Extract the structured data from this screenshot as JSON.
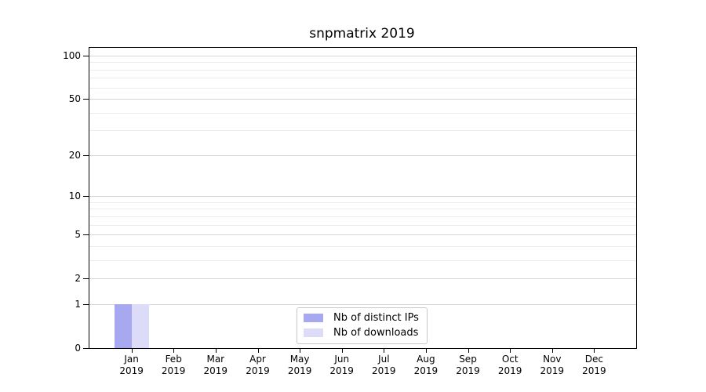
{
  "chart_data": {
    "type": "bar",
    "title": "snpmatrix 2019",
    "categories": [
      "Jan",
      "Feb",
      "Mar",
      "Apr",
      "May",
      "Jun",
      "Jul",
      "Aug",
      "Sep",
      "Oct",
      "Nov",
      "Dec"
    ],
    "xtick_year_line": "2019",
    "series": [
      {
        "name": "Nb of distinct IPs",
        "color": "#a8a8f0",
        "values": [
          1,
          0,
          0,
          0,
          0,
          0,
          0,
          0,
          0,
          0,
          0,
          0
        ]
      },
      {
        "name": "Nb of downloads",
        "color": "#dcdcf8",
        "values": [
          1,
          0,
          0,
          0,
          0,
          0,
          0,
          0,
          0,
          0,
          0,
          0
        ]
      }
    ],
    "yscale": "log1p",
    "ylim": [
      0,
      113
    ],
    "yticks": [
      0,
      1,
      2,
      5,
      10,
      20,
      50,
      100
    ],
    "minor_gridlines": [
      3,
      4,
      6,
      7,
      8,
      9,
      30,
      40,
      60,
      70,
      80,
      90
    ],
    "grid": "horizontal",
    "legend_position": "lower center",
    "legend_entries": [
      "Nb of distinct IPs",
      "Nb of downloads"
    ]
  },
  "colors": {
    "axis": "#000000",
    "major_grid": "#d6d6d6",
    "minor_grid": "#ececec",
    "legend_border": "#c9c9c9",
    "background": "#ffffff"
  }
}
